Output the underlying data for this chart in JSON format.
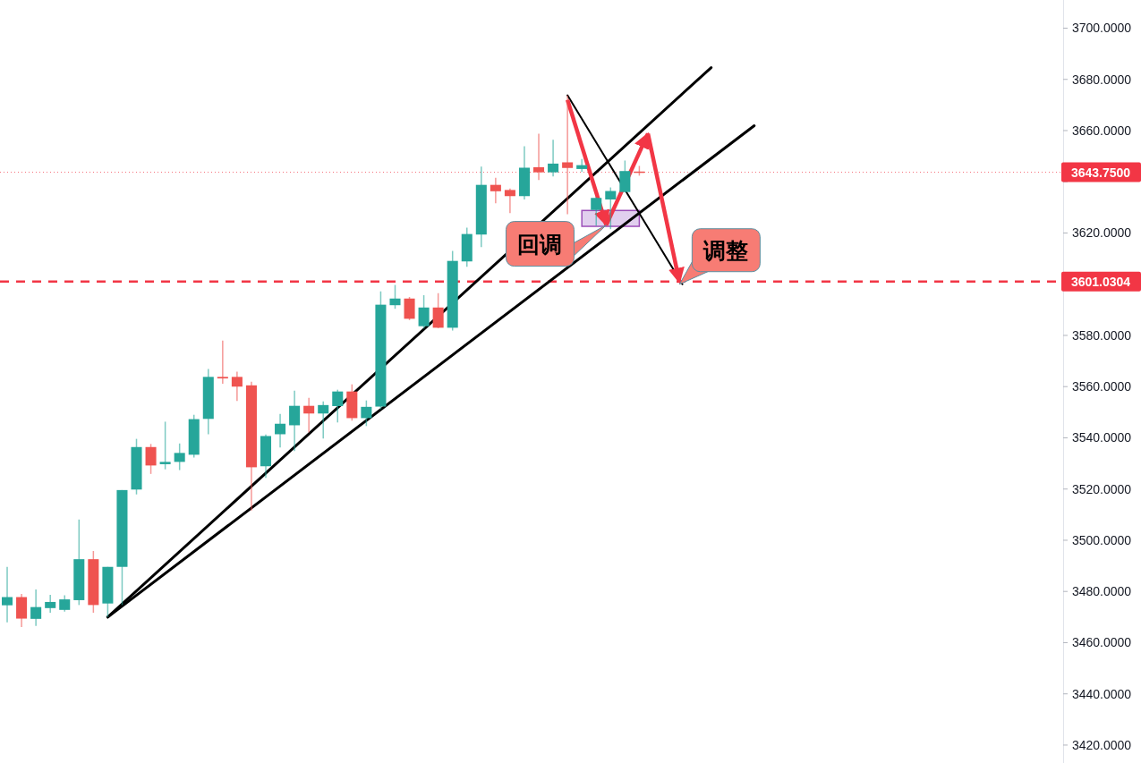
{
  "chart_data": {
    "type": "candlestick",
    "categories": [
      null,
      null,
      null,
      null,
      null,
      null,
      null,
      null,
      null,
      null,
      null,
      null,
      null,
      null,
      null,
      null,
      null,
      null,
      null,
      null,
      null,
      null,
      null,
      null,
      null,
      null,
      null,
      null,
      null,
      null,
      null,
      null,
      null,
      null,
      null,
      null,
      null,
      null,
      null,
      null,
      null,
      null,
      null,
      null,
      null,
      null,
      null,
      null,
      null,
      null,
      null,
      null,
      null,
      null,
      null,
      null,
      null,
      null,
      null,
      null,
      null,
      null,
      null,
      null,
      null,
      null,
      null,
      null,
      null,
      null,
      null,
      null,
      null,
      null
    ],
    "ohlc": [
      [
        3474.6,
        3489.6,
        3467.9,
        3477.8
      ],
      [
        3477.8,
        3479,
        3466.1,
        3469.4
      ],
      [
        3469.3,
        3480.8,
        3466.5,
        3473.9
      ],
      [
        3473.5,
        3478.7,
        3471.7,
        3475.9
      ],
      [
        3472.8,
        3478.5,
        3472.1,
        3476.9
      ],
      [
        3476.6,
        3508.1,
        3474.7,
        3492.6
      ],
      [
        3492.6,
        3495.8,
        3471.7,
        3474.7
      ],
      [
        3475.3,
        3489.6,
        3470,
        3489.6
      ],
      [
        3489.6,
        3519.6,
        3474.7,
        3519.6
      ],
      [
        3519.8,
        3539.6,
        3517.9,
        3536.4
      ],
      [
        3536.4,
        3537.6,
        3525.9,
        3529.2
      ],
      [
        3529.7,
        3546.3,
        3527.7,
        3530.6
      ],
      [
        3530.6,
        3537.8,
        3527.4,
        3534.1
      ],
      [
        3533.4,
        3549,
        3532.3,
        3547.3
      ],
      [
        3547.4,
        3566.9,
        3541.4,
        3563.8
      ],
      [
        3563.8,
        3578,
        3561.1,
        3563.2
      ],
      [
        3563.8,
        3565.8,
        3554.4,
        3560
      ],
      [
        3560.5,
        3561.9,
        3511.6,
        3528.5
      ],
      [
        3528.9,
        3541.3,
        3524.4,
        3540.7
      ],
      [
        3541.4,
        3549.3,
        3536.2,
        3545.5
      ],
      [
        3544.9,
        3558.4,
        3534.8,
        3552.5
      ],
      [
        3552.5,
        3555.6,
        3542.1,
        3549.5
      ],
      [
        3549.5,
        3554.2,
        3539.7,
        3552.8
      ],
      [
        3552.4,
        3558.8,
        3546,
        3558.1
      ],
      [
        3558.1,
        3560.9,
        3546.7,
        3547.7
      ],
      [
        3547.7,
        3554.6,
        3544.6,
        3552.1
      ],
      [
        3552.2,
        3597.2,
        3551.1,
        3592
      ],
      [
        3591.8,
        3599.7,
        3590.4,
        3594.4
      ],
      [
        3594.4,
        3595,
        3586,
        3586.5
      ],
      [
        3583.6,
        3595.7,
        3582.7,
        3590.9
      ],
      [
        3590.9,
        3596.5,
        3582.8,
        3583
      ],
      [
        3583,
        3613,
        3581.9,
        3609.1
      ],
      [
        3608.9,
        3622.1,
        3606.8,
        3619.6
      ],
      [
        3619.4,
        3645.9,
        3614.5,
        3638.8
      ],
      [
        3638.8,
        3641.6,
        3631.6,
        3636.3
      ],
      [
        3636.8,
        3637.4,
        3627.8,
        3634.4
      ],
      [
        3634.4,
        3653.9,
        3633.1,
        3645.5
      ],
      [
        3645.7,
        3658.8,
        3640.7,
        3643.7
      ],
      [
        3643.7,
        3656.4,
        3642.1,
        3647.1
      ],
      [
        3647.6,
        3673.7,
        3627.3,
        3645.4
      ],
      [
        3645,
        3648.9,
        3643.8,
        3646.5
      ],
      [
        3629,
        3634,
        3622.9,
        3633.7
      ],
      [
        3633.1,
        3637.8,
        3621.5,
        3636.4
      ],
      [
        3636,
        3648.3,
        3636,
        3644.2
      ],
      [
        3644,
        3646.2,
        3642.4,
        3643.75
      ],
      null,
      null,
      null,
      null,
      null,
      null,
      null,
      null,
      null,
      null,
      null,
      null,
      null,
      null,
      null,
      null,
      null,
      null,
      null,
      null,
      null,
      null,
      null,
      null,
      null,
      null,
      null,
      null,
      null
    ],
    "colors": [
      "#26a69a",
      "#ef5350",
      "#26a69a",
      "#26a69a",
      "#26a69a",
      "#26a69a",
      "#ef5350",
      "#26a69a",
      "#26a69a",
      "#26a69a",
      "#ef5350",
      "#26a69a",
      "#26a69a",
      "#26a69a",
      "#26a69a",
      "#ef5350",
      "#ef5350",
      "#ef5350",
      "#26a69a",
      "#26a69a",
      "#26a69a",
      "#ef5350",
      "#26a69a",
      "#26a69a",
      "#ef5350",
      "#26a69a",
      "#26a69a",
      "#26a69a",
      "#ef5350",
      "#26a69a",
      "#ef5350",
      "#26a69a",
      "#26a69a",
      "#26a69a",
      "#ef5350",
      "#ef5350",
      "#26a69a",
      "#ef5350",
      "#26a69a",
      "#ef5350",
      "#26a69a",
      "#26a69a",
      "#26a69a",
      "#26a69a",
      "#ef5350",
      null,
      null,
      null,
      null,
      null,
      null,
      null,
      null,
      null,
      null,
      null,
      null,
      null,
      null,
      null,
      null,
      null,
      null,
      null,
      null,
      null,
      null,
      null,
      null,
      null,
      null,
      null,
      null,
      null
    ],
    "series": [
      {
        "type": "line",
        "color": "#000000",
        "values": [
          null,
          null,
          null,
          null,
          null,
          null,
          null,
          3470,
          null,
          null,
          null,
          null,
          null,
          null,
          null,
          null,
          null,
          null,
          null,
          null,
          null,
          null,
          null,
          null,
          null,
          null,
          null,
          null,
          null,
          null,
          null,
          null,
          null,
          null,
          null,
          null,
          null,
          null,
          null,
          null,
          null,
          null,
          null,
          null,
          null,
          null,
          null,
          null,
          null,
          3684.6,
          null,
          null,
          null,
          null,
          null,
          null,
          null,
          null,
          null,
          null,
          null,
          null,
          null,
          null,
          null,
          null,
          null,
          null,
          null,
          null,
          null,
          null,
          null,
          null
        ]
      },
      {
        "type": "line",
        "color": "#000000",
        "values": [
          null,
          null,
          null,
          null,
          null,
          null,
          null,
          3470,
          null,
          null,
          null,
          null,
          null,
          null,
          null,
          null,
          null,
          null,
          null,
          null,
          null,
          null,
          null,
          null,
          null,
          null,
          null,
          null,
          null,
          null,
          null,
          null,
          null,
          null,
          null,
          null,
          null,
          null,
          null,
          null,
          null,
          null,
          null,
          null,
          null,
          null,
          null,
          null,
          null,
          null,
          null,
          null,
          3661.9,
          null,
          null,
          null,
          null,
          null,
          null,
          null,
          null,
          null,
          null,
          null,
          null,
          null,
          null,
          null,
          null,
          null,
          null,
          null,
          null,
          null
        ]
      },
      {
        "type": "line",
        "color": "#000000",
        "values": [
          null,
          null,
          null,
          null,
          null,
          null,
          null,
          null,
          null,
          null,
          null,
          null,
          null,
          null,
          null,
          null,
          null,
          null,
          null,
          null,
          null,
          null,
          null,
          null,
          null,
          null,
          null,
          null,
          null,
          null,
          null,
          null,
          null,
          null,
          null,
          null,
          null,
          null,
          null,
          3673.8,
          null,
          null,
          null,
          null,
          null,
          null,
          null,
          3600,
          null,
          null,
          null,
          null,
          null,
          null,
          null,
          null,
          null,
          null,
          null,
          null,
          null,
          null,
          null,
          null,
          null,
          null,
          null,
          null,
          null,
          null,
          null,
          null,
          null,
          null
        ]
      }
    ],
    "ylim": [
      3413,
      3711
    ],
    "yticks": [
      {
        "value": 3420,
        "label": "3420.0000"
      },
      {
        "value": 3440,
        "label": "3440.0000"
      },
      {
        "value": 3460,
        "label": "3460.0000"
      },
      {
        "value": 3480,
        "label": "3480.0000"
      },
      {
        "value": 3500,
        "label": "3500.0000"
      },
      {
        "value": 3520,
        "label": "3520.0000"
      },
      {
        "value": 3540,
        "label": "3540.0000"
      },
      {
        "value": 3560,
        "label": "3560.0000"
      },
      {
        "value": 3580,
        "label": "3580.0000"
      },
      {
        "value": 3600,
        "label": null
      },
      {
        "value": 3620,
        "label": "3620.0000"
      },
      {
        "value": 3640,
        "label": null
      },
      {
        "value": 3660,
        "label": "3660.0000"
      },
      {
        "value": 3680,
        "label": "3680.0000"
      },
      {
        "value": 3700,
        "label": "3700.0000"
      }
    ],
    "tick_labels": "y",
    "ref_lines": [
      {
        "axis": "y",
        "value": 3643.75,
        "label": "3643.7500",
        "color": "#f23645",
        "line_style": "dotted"
      },
      {
        "axis": "y",
        "value": 3601.0304,
        "label": "3601.0304",
        "color": "#f23645",
        "line_style": "dashed"
      }
    ],
    "annotations": [
      "回调",
      "调整"
    ]
  }
}
